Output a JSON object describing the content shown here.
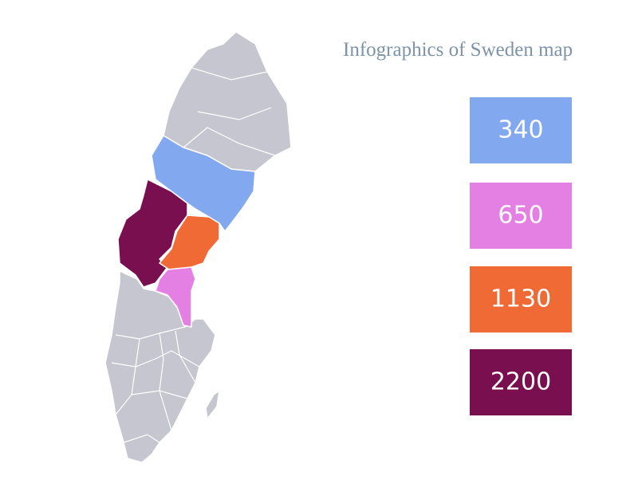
{
  "title": "Infographics of Sweden map",
  "items": [
    {
      "value": 340,
      "color": "#82a9ef"
    },
    {
      "value": 650,
      "color": "#e47fe3"
    },
    {
      "value": 1130,
      "color": "#f06a35"
    },
    {
      "value": 2200,
      "color": "#7a0f4f"
    }
  ]
}
